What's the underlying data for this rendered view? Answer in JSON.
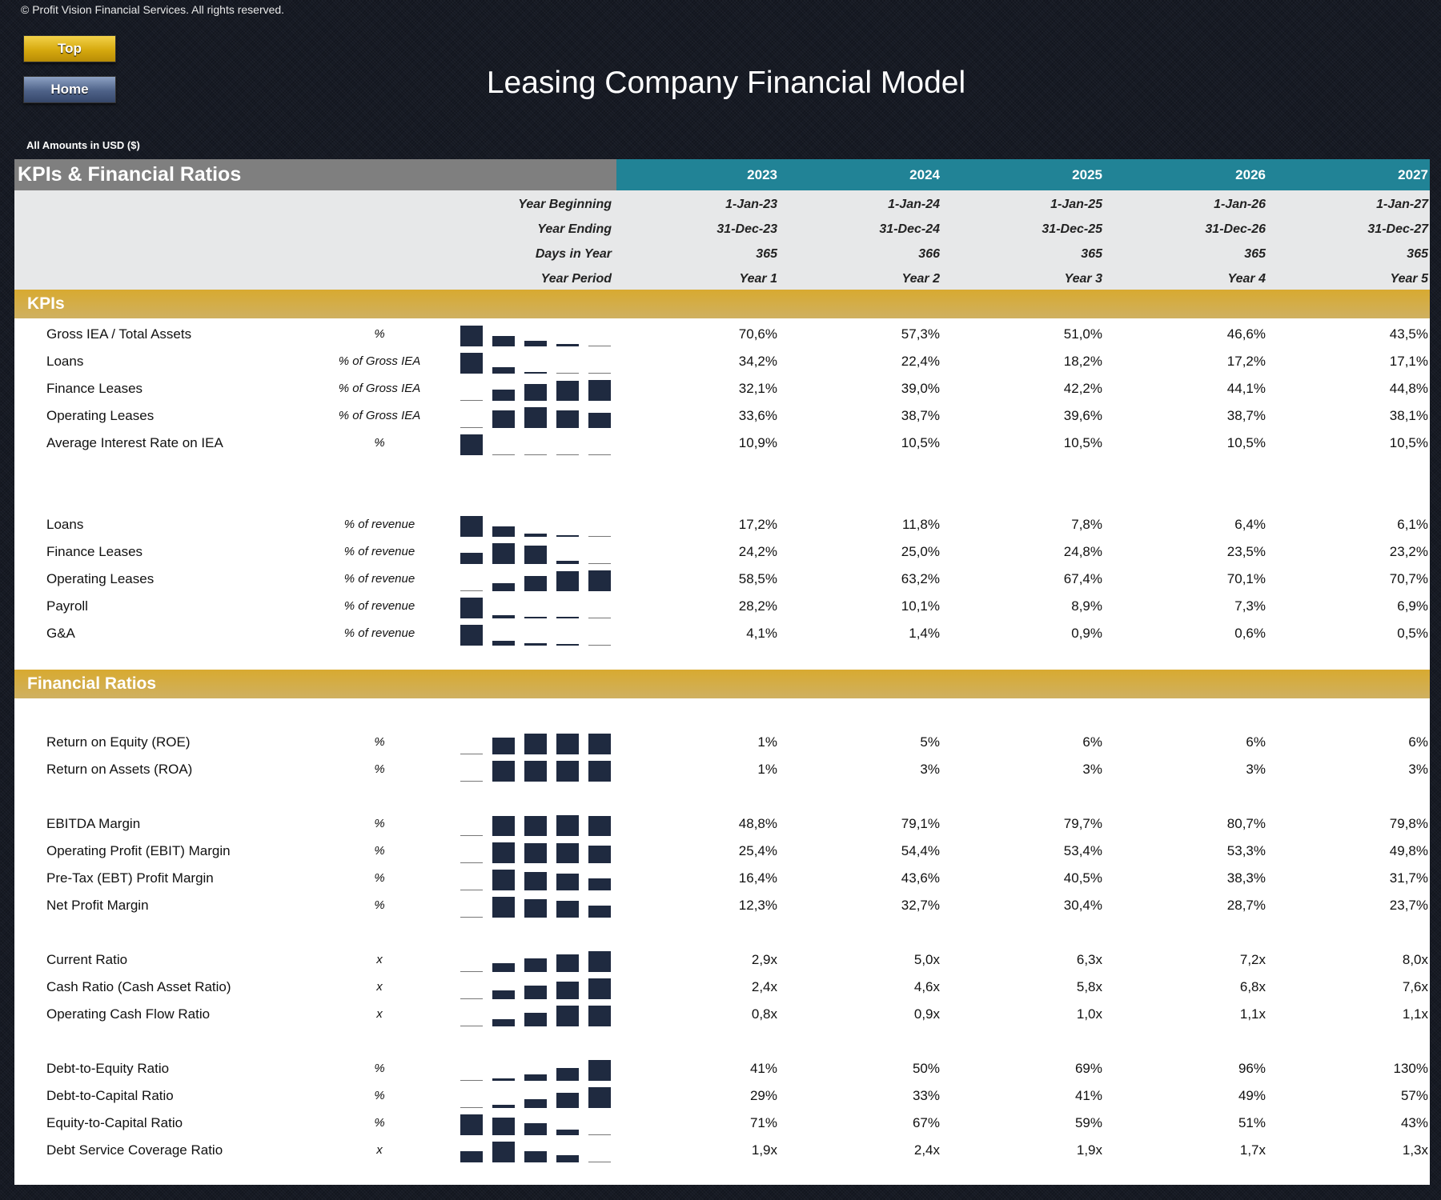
{
  "copyright": "© Profit Vision Financial Services. All rights reserved.",
  "nav": {
    "top_label": "Top",
    "home_label": "Home"
  },
  "title": "Leasing Company Financial Model",
  "amounts_note": "All Amounts in  USD ($)",
  "table": {
    "title": "KPIs & Financial Ratios",
    "years": [
      "2023",
      "2024",
      "2025",
      "2026",
      "2027"
    ],
    "info_rows": [
      {
        "label": "Year Beginning",
        "values": [
          "1-Jan-23",
          "1-Jan-24",
          "1-Jan-25",
          "1-Jan-26",
          "1-Jan-27"
        ]
      },
      {
        "label": "Year Ending",
        "values": [
          "31-Dec-23",
          "31-Dec-24",
          "31-Dec-25",
          "31-Dec-26",
          "31-Dec-27"
        ]
      },
      {
        "label": "Days in Year",
        "values": [
          "365",
          "366",
          "365",
          "365",
          "365"
        ]
      },
      {
        "label": "Year Period",
        "values": [
          "Year 1",
          "Year 2",
          "Year 3",
          "Year 4",
          "Year 5"
        ]
      }
    ],
    "sections": [
      {
        "title": "KPIs",
        "groups": [
          [
            {
              "label": "Gross IEA / Total Assets",
              "unit": "%",
              "values": [
                "70,6%",
                "57,3%",
                "51,0%",
                "46,6%",
                "43,5%"
              ]
            },
            {
              "label": "Loans",
              "unit": "% of Gross IEA",
              "values": [
                "34,2%",
                "22,4%",
                "18,2%",
                "17,2%",
                "17,1%"
              ]
            },
            {
              "label": "Finance Leases",
              "unit": "% of Gross IEA",
              "values": [
                "32,1%",
                "39,0%",
                "42,2%",
                "44,1%",
                "44,8%"
              ]
            },
            {
              "label": "Operating Leases",
              "unit": "% of Gross IEA",
              "values": [
                "33,6%",
                "38,7%",
                "39,6%",
                "38,7%",
                "38,1%"
              ]
            },
            {
              "label": "Average Interest Rate on IEA",
              "unit": "%",
              "values": [
                "10,9%",
                "10,5%",
                "10,5%",
                "10,5%",
                "10,5%"
              ]
            }
          ],
          [
            {
              "label": "Loans",
              "unit": "% of revenue",
              "values": [
                "17,2%",
                "11,8%",
                "7,8%",
                "6,4%",
                "6,1%"
              ]
            },
            {
              "label": "Finance Leases",
              "unit": "% of revenue",
              "values": [
                "24,2%",
                "25,0%",
                "24,8%",
                "23,5%",
                "23,2%"
              ]
            },
            {
              "label": "Operating Leases",
              "unit": "% of revenue",
              "values": [
                "58,5%",
                "63,2%",
                "67,4%",
                "70,1%",
                "70,7%"
              ]
            },
            {
              "label": "Payroll",
              "unit": "% of revenue",
              "values": [
                "28,2%",
                "10,1%",
                "8,9%",
                "7,3%",
                "6,9%"
              ]
            },
            {
              "label": "G&A",
              "unit": "% of revenue",
              "values": [
                "4,1%",
                "1,4%",
                "0,9%",
                "0,6%",
                "0,5%"
              ]
            }
          ]
        ]
      },
      {
        "title": "Financial Ratios",
        "groups": [
          [
            {
              "label": "Return on Equity (ROE)",
              "unit": "%",
              "values": [
                "1%",
                "5%",
                "6%",
                "6%",
                "6%"
              ]
            },
            {
              "label": "Return on Assets (ROA)",
              "unit": "%",
              "values": [
                "1%",
                "3%",
                "3%",
                "3%",
                "3%"
              ]
            }
          ],
          [
            {
              "label": "EBITDA Margin",
              "unit": "%",
              "values": [
                "48,8%",
                "79,1%",
                "79,7%",
                "80,7%",
                "79,8%"
              ]
            },
            {
              "label": "Operating Profit (EBIT) Margin",
              "unit": "%",
              "values": [
                "25,4%",
                "54,4%",
                "53,4%",
                "53,3%",
                "49,8%"
              ]
            },
            {
              "label": "Pre-Tax (EBT) Profit Margin",
              "unit": "%",
              "values": [
                "16,4%",
                "43,6%",
                "40,5%",
                "38,3%",
                "31,7%"
              ]
            },
            {
              "label": "Net Profit Margin",
              "unit": "%",
              "values": [
                "12,3%",
                "32,7%",
                "30,4%",
                "28,7%",
                "23,7%"
              ]
            }
          ],
          [
            {
              "label": "Current Ratio",
              "unit": "x",
              "values": [
                "2,9x",
                "5,0x",
                "6,3x",
                "7,2x",
                "8,0x"
              ]
            },
            {
              "label": "Cash Ratio (Cash Asset Ratio)",
              "unit": "x",
              "values": [
                "2,4x",
                "4,6x",
                "5,8x",
                "6,8x",
                "7,6x"
              ]
            },
            {
              "label": "Operating Cash Flow Ratio",
              "unit": "x",
              "values": [
                "0,8x",
                "0,9x",
                "1,0x",
                "1,1x",
                "1,1x"
              ]
            }
          ],
          [
            {
              "label": "Debt-to-Equity Ratio",
              "unit": "%",
              "values": [
                "41%",
                "50%",
                "69%",
                "96%",
                "130%"
              ]
            },
            {
              "label": "Debt-to-Capital Ratio",
              "unit": "%",
              "values": [
                "29%",
                "33%",
                "41%",
                "49%",
                "57%"
              ]
            },
            {
              "label": "Equity-to-Capital Ratio",
              "unit": "%",
              "values": [
                "71%",
                "67%",
                "59%",
                "51%",
                "43%"
              ]
            },
            {
              "label": "Debt Service Coverage Ratio",
              "unit": "x",
              "values": [
                "1,9x",
                "2,4x",
                "1,9x",
                "1,7x",
                "1,3x"
              ]
            }
          ]
        ]
      }
    ]
  },
  "colors": {
    "header_teal": "#218396",
    "title_grey": "#7f7f7f",
    "section_gold": "#d4ab38",
    "sparkline_bar": "#1f2a40"
  }
}
